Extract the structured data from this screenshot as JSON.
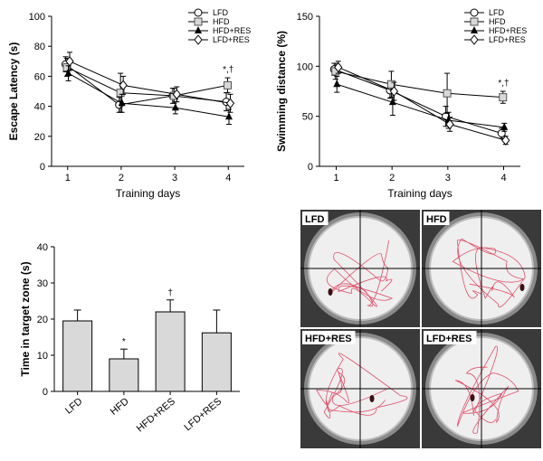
{
  "chart_data": [
    {
      "type": "line",
      "ylabel": "Escape Latency (s)",
      "xlabel": "Training days",
      "x": [
        1,
        2,
        3,
        4
      ],
      "ylim": [
        0,
        100
      ],
      "yticks": [
        0,
        20,
        40,
        60,
        80,
        100
      ],
      "series": [
        {
          "name": "LFD",
          "values": [
            68,
            41,
            47,
            43
          ],
          "err": [
            5,
            5,
            5,
            6
          ],
          "marker": "circle-open"
        },
        {
          "name": "HFD",
          "values": [
            66,
            49,
            47,
            54
          ],
          "err": [
            6,
            13,
            5,
            5
          ],
          "marker": "square-open"
        },
        {
          "name": "HFD+RES",
          "values": [
            62,
            42,
            39,
            33
          ],
          "err": [
            5,
            6,
            4,
            5
          ],
          "marker": "triangle-filled"
        },
        {
          "name": "LFD+RES",
          "values": [
            70,
            54,
            48,
            42
          ],
          "err": [
            6,
            6,
            5,
            6
          ],
          "marker": "diamond-open"
        }
      ],
      "annotation": "*,†",
      "legend": "top-right"
    },
    {
      "type": "line",
      "ylabel": "Swimming distance (%)",
      "xlabel": "Training days",
      "x": [
        1,
        2,
        3,
        4
      ],
      "ylim": [
        0,
        150
      ],
      "yticks": [
        0,
        50,
        100,
        150
      ],
      "series": [
        {
          "name": "LFD",
          "values": [
            97,
            76,
            50,
            33
          ],
          "err": [
            6,
            8,
            10,
            5
          ],
          "marker": "circle-open"
        },
        {
          "name": "HFD",
          "values": [
            95,
            82,
            73,
            69
          ],
          "err": [
            8,
            13,
            20,
            6
          ],
          "marker": "square-open"
        },
        {
          "name": "HFD+RES",
          "values": [
            82,
            64,
            46,
            39
          ],
          "err": [
            8,
            13,
            8,
            4
          ],
          "marker": "triangle-filled"
        },
        {
          "name": "LFD+RES",
          "values": [
            99,
            75,
            42,
            26
          ],
          "err": [
            6,
            9,
            7,
            4
          ],
          "marker": "diamond-open"
        }
      ],
      "annotation": "*,†",
      "legend": "top-right"
    },
    {
      "type": "bar",
      "ylabel": "Time in target zone (s)",
      "categories": [
        "LFD",
        "HFD",
        "HFD+RES",
        "LFD+RES"
      ],
      "values": [
        19.5,
        9,
        22,
        16.2
      ],
      "err": [
        3,
        2.7,
        3.3,
        6.3
      ],
      "bar_annotations": [
        "",
        "*",
        "†",
        ""
      ],
      "ylim": [
        0,
        40
      ],
      "yticks": [
        0,
        10,
        20,
        30,
        40
      ]
    }
  ],
  "swim_panels": [
    "LFD",
    "HFD",
    "HFD+RES",
    "LFD+RES"
  ],
  "colors": {
    "trail": "#e0506a",
    "bar_fill": "#d9d9d9",
    "panel_bg": "#3a3a3a"
  }
}
